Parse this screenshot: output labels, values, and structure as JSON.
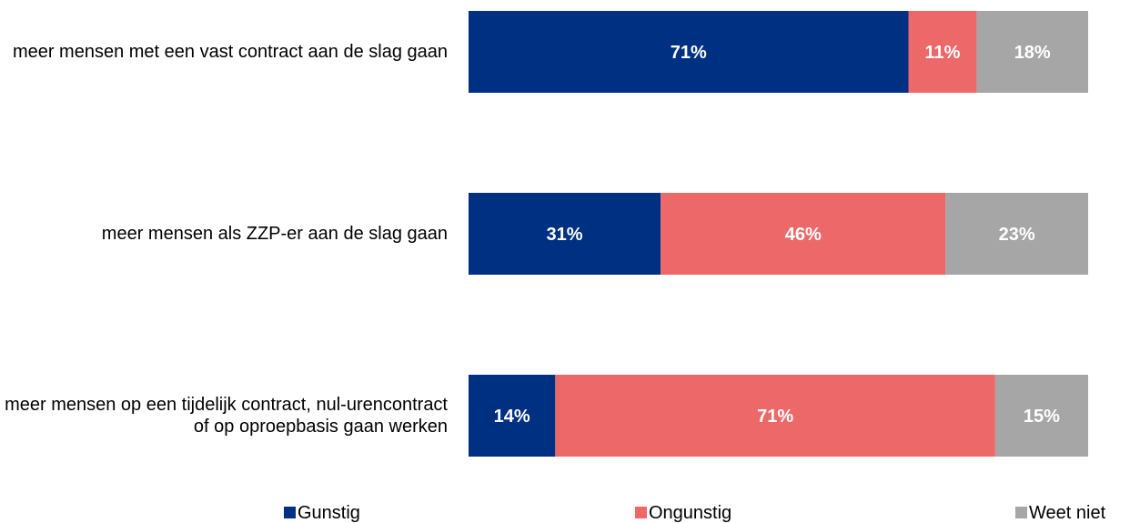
{
  "chart_data": {
    "type": "stacked-barh",
    "categories": [
      "meer mensen met een vast contract aan de slag gaan",
      "meer mensen als ZZP-er aan de slag gaan",
      "meer mensen op een tijdelijk contract, nul-urencontract of op oproepbasis gaan werken"
    ],
    "series": [
      {
        "name": "Gunstig",
        "color": "#003082",
        "values": [
          71,
          31,
          14
        ],
        "value_labels": [
          "71%",
          "31%",
          "14%"
        ]
      },
      {
        "name": "Ongunstig",
        "color": "#ed6868",
        "values": [
          11,
          46,
          71
        ],
        "value_labels": [
          "11%",
          "46%",
          "71%"
        ]
      },
      {
        "name": "Weet niet",
        "color": "#a6a6a6",
        "values": [
          18,
          23,
          15
        ],
        "value_labels": [
          "18%",
          "23%",
          "15%"
        ]
      }
    ],
    "xlim": [
      0,
      100
    ],
    "legend": "bottom"
  }
}
